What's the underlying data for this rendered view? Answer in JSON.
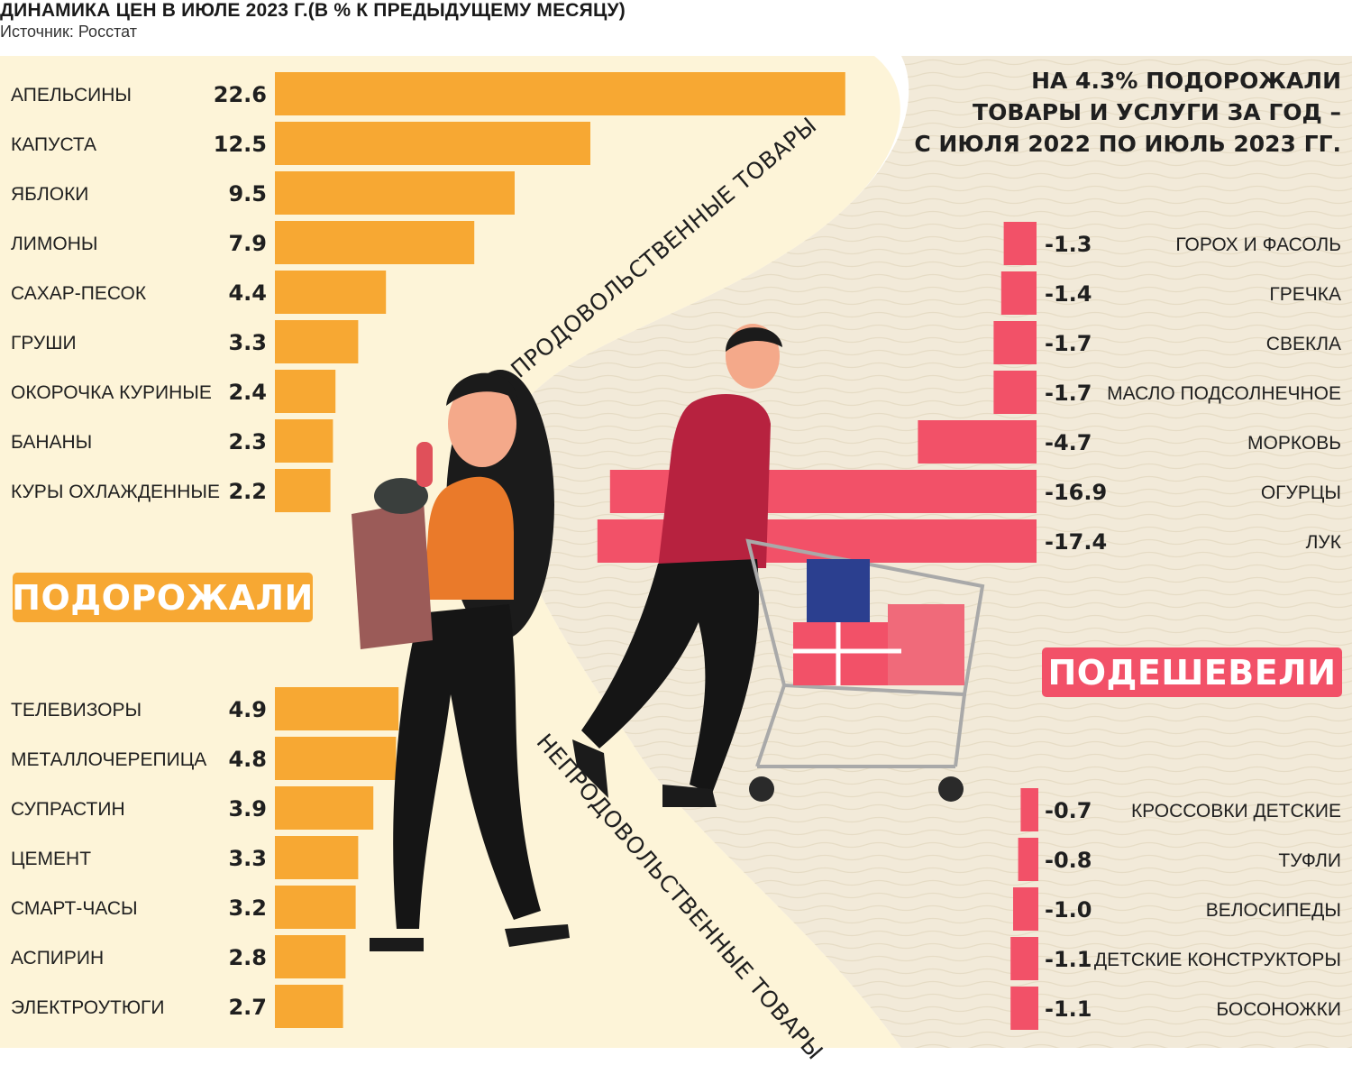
{
  "header": {
    "title": "ДИНАМИКА ЦЕН В ИЮЛЕ 2023 Г.(В % К ПРЕДЫДУЩЕМУ МЕСЯЦУ)",
    "source": "Источник: Росстат"
  },
  "badges": {
    "rose": "ПОДОРОЖАЛИ",
    "fell": "ПОДЕШЕВЕЛИ"
  },
  "annual_note": {
    "line1": "НА 4.3% ПОДОРОЖАЛИ",
    "line2": "ТОВАРЫ И УСЛУГИ ЗА ГОД –",
    "line3": "С ИЮЛЯ 2022 ПО ИЮЛЬ 2023 ГГ."
  },
  "section_labels": {
    "food": "ПРОДОВОЛЬСТВЕННЫЕ ТОВАРЫ",
    "nonfood": "НЕПРОДОВОЛЬСТВЕННЫЕ ТОВАРЫ"
  },
  "colors": {
    "increase": "#f7a833",
    "decrease": "#f25168",
    "backdrop": "#f2ead9",
    "backdrop_light": "#fdf4d8"
  },
  "chart_data": [
    {
      "type": "bar",
      "title": "Подорожали — продовольственные товары",
      "unit": "% к предыдущему месяцу",
      "categories": [
        "АПЕЛЬСИНЫ",
        "КАПУСТА",
        "ЯБЛОКИ",
        "ЛИМОНЫ",
        "САХАР-ПЕСОК",
        "ГРУШИ",
        "ОКОРОЧКА КУРИНЫЕ",
        "БАНАНЫ",
        "КУРЫ ОХЛАЖДЕННЫЕ"
      ],
      "labels": [
        "22.6",
        "12.5",
        "9.5",
        "7.9",
        "4.4",
        "3.3",
        "2.4",
        "2.3",
        "2.2"
      ],
      "values": [
        22.6,
        12.5,
        9.5,
        7.9,
        4.4,
        3.3,
        2.4,
        2.3,
        2.2
      ]
    },
    {
      "type": "bar",
      "title": "Подорожали — непродовольственные товары",
      "unit": "% к предыдущему месяцу",
      "categories": [
        "ТЕЛЕВИЗОРЫ",
        "МЕТАЛЛОЧЕРЕПИЦА",
        "СУПРАСТИН",
        "ЦЕМЕНТ",
        "СМАРТ-ЧАСЫ",
        "АСПИРИН",
        "ЭЛЕКТРОУТЮГИ"
      ],
      "labels": [
        "4.9",
        "4.8",
        "3.9",
        "3.3",
        "3.2",
        "2.8",
        "2.7"
      ],
      "values": [
        4.9,
        4.8,
        3.9,
        3.3,
        3.2,
        2.8,
        2.7
      ]
    },
    {
      "type": "bar",
      "title": "Подешевели — продовольственные товары",
      "unit": "% к предыдущему месяцу",
      "categories": [
        "ГОРОХ И ФАСОЛЬ",
        "ГРЕЧКА",
        "СВЕКЛА",
        "МАСЛО ПОДСОЛНЕЧНОЕ",
        "МОРКОВЬ",
        "ОГУРЦЫ",
        "ЛУК"
      ],
      "labels": [
        "-1.3",
        "-1.4",
        "-1.7",
        "-1.7",
        "-4.7",
        "-16.9",
        "-17.4"
      ],
      "values": [
        -1.3,
        -1.4,
        -1.7,
        -1.7,
        -4.7,
        -16.9,
        -17.4
      ]
    },
    {
      "type": "bar",
      "title": "Подешевели — непродовольственные товары",
      "unit": "% к предыдущему месяцу",
      "categories": [
        "КРОССОВКИ ДЕТСКИЕ",
        "ТУФЛИ",
        "ВЕЛОСИПЕДЫ",
        "ДЕТСКИЕ КОНСТРУКТОРЫ",
        "БОСОНОЖКИ"
      ],
      "labels": [
        "-0.7",
        "-0.8",
        "-1.0",
        "-1.1",
        "-1.1"
      ],
      "values": [
        -0.7,
        -0.8,
        -1.0,
        -1.1,
        -1.1
      ]
    }
  ]
}
